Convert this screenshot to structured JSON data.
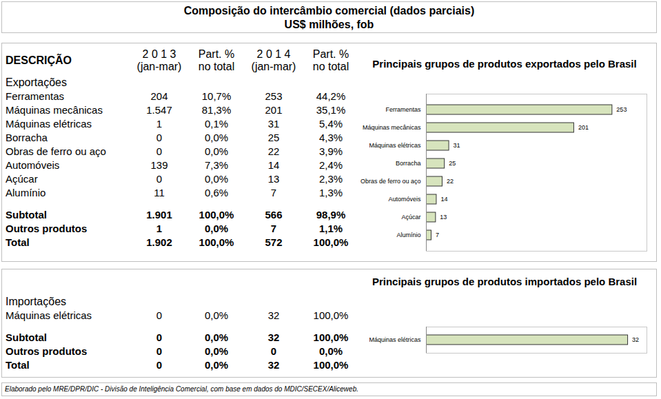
{
  "title": "Composição do intercâmbio comercial (dados parciais)",
  "subtitle": "US$ milhões, fob",
  "table": {
    "header": [
      [
        "DESCRIÇÃO"
      ],
      [
        "2 0 1 3",
        "(jan-mar)"
      ],
      [
        "Part. %",
        "no total"
      ],
      [
        "2 0 1 4",
        "(jan-mar)"
      ],
      [
        "Part. %",
        "no total"
      ]
    ],
    "sections": [
      {
        "label": "Exportações",
        "rows": [
          [
            "Ferramentas",
            "204",
            "10,7%",
            "253",
            "44,2%"
          ],
          [
            "Máquinas mecânicas",
            "1.547",
            "81,3%",
            "201",
            "35,1%"
          ],
          [
            "Máquinas elétricas",
            "1",
            "0,1%",
            "31",
            "5,4%"
          ],
          [
            "Borracha",
            "0",
            "0,0%",
            "25",
            "4,3%"
          ],
          [
            "Obras de ferro ou aço",
            "0",
            "0,0%",
            "22",
            "3,9%"
          ],
          [
            "Automóveis",
            "139",
            "7,3%",
            "14",
            "2,4%"
          ],
          [
            "Açúcar",
            "0",
            "0,0%",
            "13",
            "2,3%"
          ],
          [
            "Alumínio",
            "11",
            "0,6%",
            "7",
            "1,3%"
          ]
        ],
        "totals": [
          [
            "Subtotal",
            "1.901",
            "100,0%",
            "566",
            "98,9%"
          ],
          [
            "Outros produtos",
            "1",
            "0,0%",
            "7",
            "1,1%"
          ],
          [
            "Total",
            "1.902",
            "100,0%",
            "572",
            "100,0%"
          ]
        ]
      },
      {
        "label": "Importações",
        "rows": [
          [
            "Máquinas elétricas",
            "0",
            "0,0%",
            "32",
            "100,0%"
          ]
        ],
        "totals": [
          [
            "Subtotal",
            "0",
            "0,0%",
            "32",
            "100,0%"
          ],
          [
            "Outros produtos",
            "0",
            "0,0%",
            "0",
            "0,0%"
          ],
          [
            "Total",
            "0",
            "0,0%",
            "32",
            "100,0%"
          ]
        ]
      }
    ]
  },
  "chart_data": [
    {
      "type": "bar",
      "title": "Principais grupos de produtos exportados pelo Brasil",
      "orientation": "horizontal",
      "categories": [
        "Ferramentas",
        "Máquinas mecânicas",
        "Máquinas elétricas",
        "Borracha",
        "Obras de ferro ou aço",
        "Automóveis",
        "Açúcar",
        "Alumínio"
      ],
      "values": [
        253,
        201,
        31,
        25,
        22,
        14,
        13,
        7
      ],
      "color": "#d7e4bd",
      "xlim": [
        0,
        300
      ],
      "grid": false,
      "data_labels": true,
      "tick_labels": "y"
    },
    {
      "type": "bar",
      "title": "Principais grupos de produtos importados pelo Brasil",
      "orientation": "horizontal",
      "categories": [
        "Máquinas elétricas"
      ],
      "values": [
        32
      ],
      "color": "#d7e4bd",
      "xlim": [
        0,
        35
      ],
      "grid": false,
      "data_labels": true,
      "tick_labels": "y"
    }
  ],
  "source": "Elaborado pelo MRE/DPR/DIC - Divisão de Inteligência Comercial, com base em dados do MDIC/SECEX/Aliceweb."
}
